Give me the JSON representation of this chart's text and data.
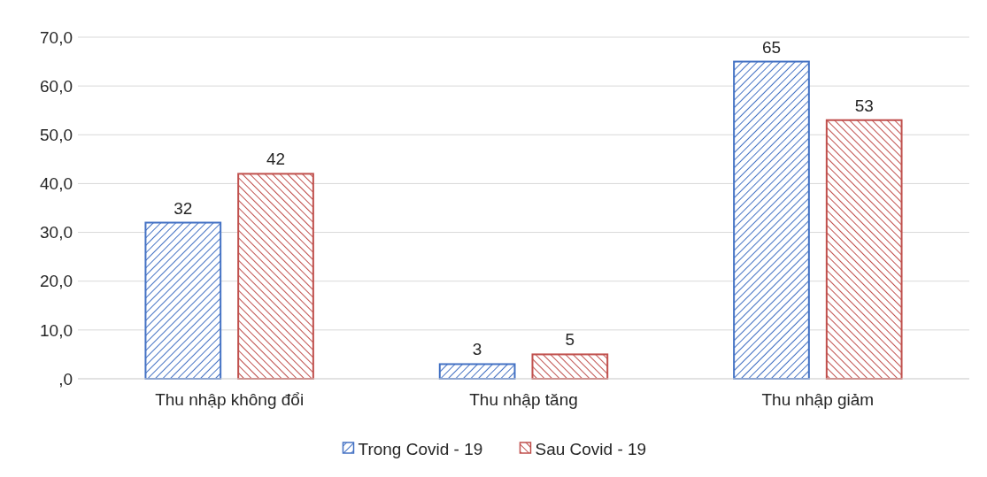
{
  "chart_data": {
    "type": "bar",
    "categories": [
      "Thu nhập không đổi",
      "Thu nhập tăng",
      "Thu nhập giảm"
    ],
    "series": [
      {
        "name": "Trong Covid - 19",
        "color": "#4472c4",
        "values": [
          32,
          3,
          65
        ]
      },
      {
        "name": "Sau Covid - 19",
        "color": "#c0504d",
        "values": [
          42,
          5,
          53
        ]
      }
    ],
    "ylim": [
      0,
      70
    ],
    "yticks": [
      {
        "value": 0,
        "label": ",0"
      },
      {
        "value": 10,
        "label": "10,0"
      },
      {
        "value": 20,
        "label": "20,0"
      },
      {
        "value": 30,
        "label": "30,0"
      },
      {
        "value": 40,
        "label": "40,0"
      },
      {
        "value": 50,
        "label": "50,0"
      },
      {
        "value": 60,
        "label": "60,0"
      },
      {
        "value": 70,
        "label": "70,0"
      }
    ],
    "grid": "y",
    "legend": "bottom",
    "data_labels": true
  }
}
